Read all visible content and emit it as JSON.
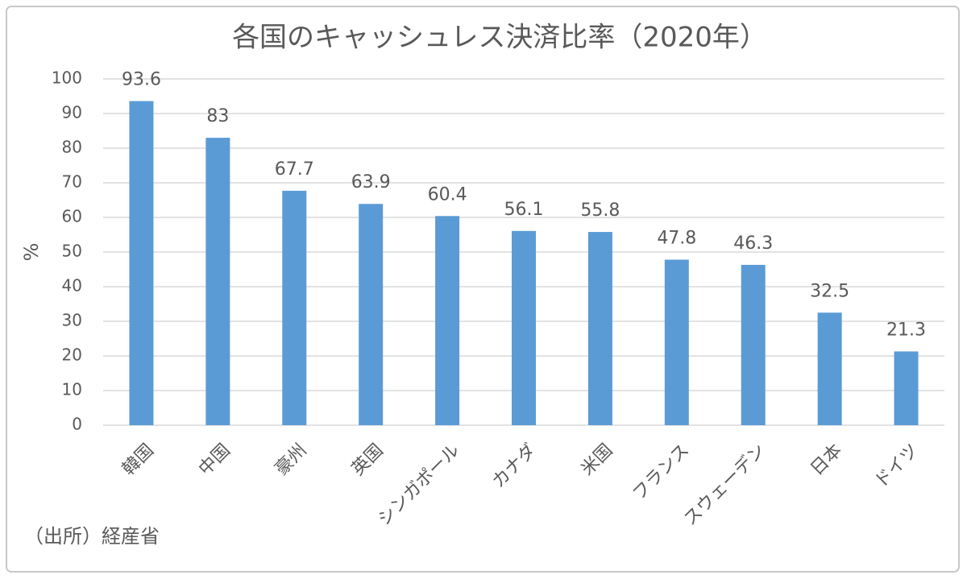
{
  "chart_data": {
    "type": "bar",
    "title": "各国のキャッシュレス決済比率（2020年）",
    "y_label": "%",
    "annotation": "（出所）経産省",
    "categories": [
      "韓国",
      "中国",
      "豪州",
      "英国",
      "シンガポール",
      "カナダ",
      "米国",
      "フランス",
      "スウェーデン",
      "日本",
      "ドイツ"
    ],
    "values": [
      93.6,
      83,
      67.7,
      63.9,
      60.4,
      56.1,
      55.8,
      47.8,
      46.3,
      32.5,
      21.3
    ],
    "color": "#5b9bd5",
    "ylim": [
      0,
      100
    ],
    "yticks": [
      0,
      10,
      20,
      30,
      40,
      50,
      60,
      70,
      80,
      90,
      100
    ],
    "grid": true
  }
}
